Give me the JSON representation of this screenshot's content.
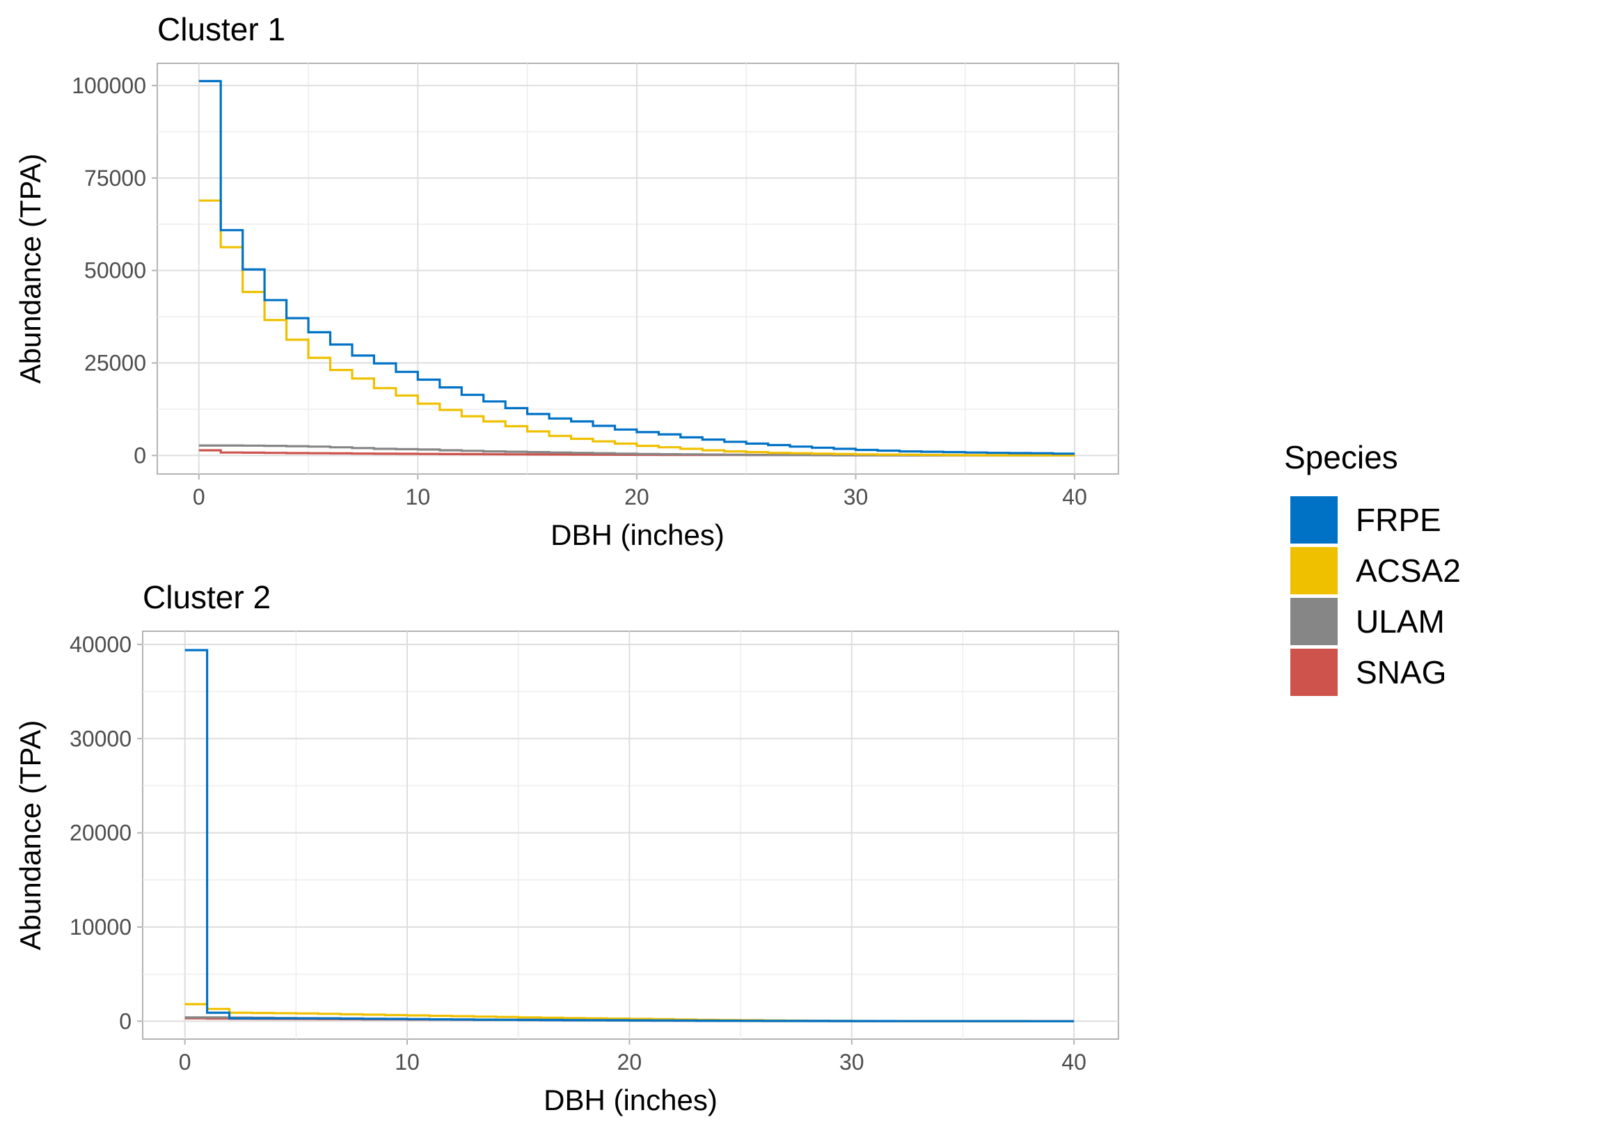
{
  "chart_data": [
    {
      "type": "line",
      "step": true,
      "title": "Cluster 1",
      "xlabel": "DBH (inches)",
      "ylabel": "Abundance (TPA)",
      "xlim": [
        -1.9,
        42
      ],
      "ylim": [
        -5000,
        106000
      ],
      "xticks": [
        0,
        10,
        20,
        30,
        40
      ],
      "yticks": [
        0,
        25000,
        50000,
        75000,
        100000
      ],
      "grid": true,
      "series": [
        {
          "name": "FRPE",
          "color": "#0072C6",
          "x": [
            0,
            1,
            2,
            3,
            4,
            5,
            6,
            7,
            8,
            9,
            10,
            11,
            12,
            13,
            14,
            15,
            16,
            17,
            18,
            19,
            20,
            21,
            22,
            23,
            24,
            25,
            26,
            27,
            28,
            29,
            30,
            31,
            32,
            33,
            34,
            35,
            36,
            37,
            38,
            39,
            40
          ],
          "y": [
            101200,
            60900,
            50300,
            42000,
            37100,
            33300,
            30000,
            27000,
            24900,
            22600,
            20500,
            18400,
            16400,
            14600,
            12800,
            11200,
            10000,
            9200,
            8000,
            7000,
            6300,
            5700,
            4900,
            4300,
            3700,
            3200,
            2800,
            2400,
            2100,
            1800,
            1500,
            1300,
            1100,
            1000,
            900,
            800,
            700,
            650,
            600,
            500,
            500
          ]
        },
        {
          "name": "ACSA2",
          "color": "#EFC000",
          "x": [
            0,
            1,
            2,
            3,
            4,
            5,
            6,
            7,
            8,
            9,
            10,
            11,
            12,
            13,
            14,
            15,
            16,
            17,
            18,
            19,
            20,
            21,
            22,
            23,
            24,
            25,
            26,
            27,
            28,
            29,
            30,
            31,
            32,
            33,
            34,
            35,
            36,
            37,
            38,
            39,
            40
          ],
          "y": [
            68900,
            56300,
            44200,
            36600,
            31300,
            26400,
            23100,
            20800,
            18200,
            16200,
            14000,
            12300,
            10600,
            9200,
            7900,
            6500,
            5300,
            4500,
            3800,
            3200,
            2600,
            2200,
            1800,
            1400,
            1100,
            900,
            700,
            600,
            500,
            400,
            300,
            250,
            200,
            150,
            100,
            80,
            60,
            50,
            40,
            30,
            20
          ]
        },
        {
          "name": "ULAM",
          "color": "#868686",
          "x": [
            0,
            1,
            2,
            3,
            4,
            5,
            6,
            7,
            8,
            9,
            10,
            11,
            12,
            13,
            14,
            15,
            16,
            17,
            18,
            19,
            20,
            21,
            22,
            23,
            24,
            25,
            26,
            27,
            28,
            29,
            30,
            31,
            32,
            33,
            34,
            35,
            36,
            37,
            38,
            39,
            40
          ],
          "y": [
            2700,
            2700,
            2650,
            2600,
            2500,
            2400,
            2200,
            2000,
            1800,
            1700,
            1600,
            1400,
            1250,
            1100,
            1000,
            900,
            800,
            700,
            600,
            500,
            400,
            350,
            300,
            250,
            200,
            150,
            120,
            100,
            80,
            60,
            50,
            40,
            30,
            25,
            20,
            15,
            10,
            8,
            6,
            4,
            2
          ]
        },
        {
          "name": "SNAG",
          "color": "#CD534C",
          "x": [
            0,
            1,
            2,
            3,
            4,
            5,
            6,
            7,
            8,
            9,
            10,
            11,
            12,
            13,
            14,
            15,
            16,
            17,
            18,
            19,
            20,
            21,
            22,
            23,
            24,
            25,
            26,
            27,
            28,
            29,
            30,
            31,
            32,
            33,
            34,
            35,
            36,
            37,
            38,
            39,
            40
          ],
          "y": [
            1400,
            800,
            750,
            700,
            650,
            600,
            560,
            520,
            480,
            450,
            420,
            390,
            360,
            330,
            300,
            280,
            260,
            240,
            220,
            200,
            180,
            160,
            150,
            140,
            130,
            120,
            110,
            100,
            90,
            80,
            70,
            60,
            55,
            50,
            45,
            40,
            35,
            30,
            25,
            20,
            15
          ]
        }
      ]
    },
    {
      "type": "line",
      "step": true,
      "title": "Cluster 2",
      "xlabel": "DBH (inches)",
      "ylabel": "Abundance (TPA)",
      "xlim": [
        -1.9,
        42
      ],
      "ylim": [
        -1900,
        41400
      ],
      "xticks": [
        0,
        10,
        20,
        30,
        40
      ],
      "yticks": [
        0,
        10000,
        20000,
        30000,
        40000
      ],
      "grid": true,
      "series": [
        {
          "name": "FRPE",
          "color": "#0072C6",
          "x": [
            0,
            1,
            2,
            3,
            4,
            5,
            6,
            7,
            8,
            9,
            10,
            11,
            12,
            13,
            14,
            15,
            16,
            17,
            18,
            19,
            20,
            21,
            22,
            23,
            24,
            25,
            26,
            27,
            28,
            29,
            30,
            31,
            32,
            33,
            34,
            35,
            36,
            37,
            38,
            39,
            40
          ],
          "y": [
            39400,
            900,
            300,
            300,
            300,
            300,
            300,
            280,
            260,
            240,
            220,
            200,
            180,
            160,
            150,
            140,
            130,
            120,
            110,
            100,
            90,
            80,
            70,
            60,
            50,
            40,
            35,
            30,
            25,
            20,
            15,
            12,
            10,
            8,
            6,
            5,
            4,
            3,
            2,
            1,
            1
          ]
        },
        {
          "name": "ACSA2",
          "color": "#EFC000",
          "x": [
            0,
            1,
            2,
            3,
            4,
            5,
            6,
            7,
            8,
            9,
            10,
            11,
            12,
            13,
            14,
            15,
            16,
            17,
            18,
            19,
            20,
            21,
            22,
            23,
            24,
            25,
            26,
            27,
            28,
            29,
            30,
            31,
            32,
            33,
            34,
            35,
            36,
            37,
            38,
            39,
            40
          ],
          "y": [
            1800,
            1300,
            900,
            870,
            850,
            830,
            780,
            730,
            690,
            650,
            610,
            570,
            530,
            490,
            450,
            400,
            360,
            330,
            300,
            270,
            240,
            210,
            180,
            150,
            120,
            100,
            80,
            60,
            40,
            30,
            20,
            15,
            10,
            8,
            6,
            5,
            4,
            3,
            2,
            1,
            1
          ]
        },
        {
          "name": "ULAM",
          "color": "#868686",
          "x": [
            0,
            1,
            2,
            3,
            4,
            5,
            6,
            7,
            8,
            9,
            10,
            11,
            12,
            13,
            14,
            15,
            16,
            17,
            18,
            19,
            20,
            21,
            22,
            23,
            24,
            25,
            26,
            27,
            28,
            29,
            30,
            31,
            32,
            33,
            34,
            35,
            36,
            37,
            38,
            39,
            40
          ],
          "y": [
            400,
            400,
            380,
            360,
            340,
            320,
            300,
            280,
            260,
            240,
            220,
            200,
            180,
            160,
            140,
            120,
            100,
            90,
            80,
            70,
            60,
            50,
            40,
            30,
            25,
            20,
            15,
            10,
            8,
            6,
            5,
            4,
            3,
            2,
            1,
            1,
            1,
            1,
            1,
            1,
            1
          ]
        },
        {
          "name": "SNAG",
          "color": "#CD534C",
          "x": [
            0,
            1,
            2,
            3,
            4,
            5,
            6,
            7,
            8,
            9,
            10,
            11,
            12,
            13,
            14,
            15,
            16,
            17,
            18,
            19,
            20,
            21,
            22,
            23,
            24,
            25,
            26,
            27,
            28,
            29,
            30,
            31,
            32,
            33,
            34,
            35,
            36,
            37,
            38,
            39,
            40
          ],
          "y": [
            300,
            280,
            260,
            250,
            240,
            230,
            220,
            210,
            200,
            190,
            180,
            170,
            160,
            150,
            140,
            130,
            120,
            110,
            100,
            90,
            80,
            70,
            60,
            50,
            40,
            35,
            30,
            25,
            20,
            15,
            10,
            8,
            6,
            5,
            4,
            3,
            2,
            2,
            1,
            1,
            1
          ]
        }
      ]
    }
  ],
  "legend": {
    "title": "Species",
    "placement": "right",
    "items": [
      {
        "label": "FRPE",
        "color": "#0072C6"
      },
      {
        "label": "ACSA2",
        "color": "#EFC000"
      },
      {
        "label": "ULAM",
        "color": "#868686"
      },
      {
        "label": "SNAG",
        "color": "#CD534C"
      }
    ]
  }
}
